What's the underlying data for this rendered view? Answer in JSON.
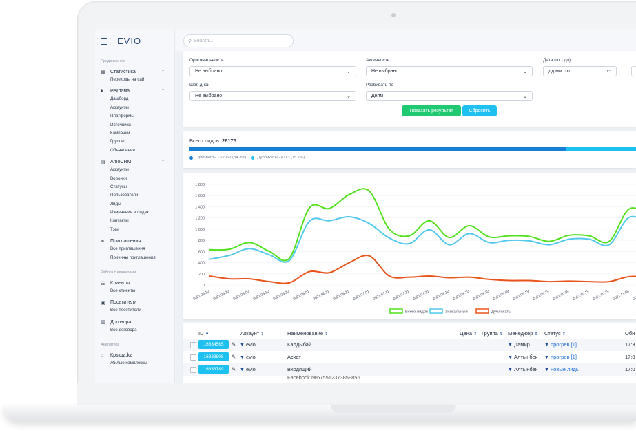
{
  "app": {
    "brand": "EVIO"
  },
  "search": {
    "placeholder": "Search..."
  },
  "sidebar": {
    "sections": [
      {
        "title": "Продвижение",
        "groups": [
          {
            "label": "Статистика",
            "icon": "building-icon",
            "items": [
              "Переходы на сайт"
            ]
          },
          {
            "label": "Реклама",
            "icon": "lightbulb-icon",
            "items": [
              "Дашборд",
              "Аккаунты",
              "Платформы",
              "Источники",
              "Кампании",
              "Группы",
              "Объявления"
            ]
          },
          {
            "label": "AmoCRM",
            "icon": "card-icon",
            "items": [
              "Аккаунты",
              "Воронки",
              "Статусы",
              "Пользователи",
              "Лиды",
              "Изменения в лидах",
              "Контакты",
              "Тэги"
            ]
          },
          {
            "label": "Приглашения",
            "icon": "handshake-icon",
            "items": [
              "Все приглашения",
              "Причины приглашения"
            ]
          }
        ]
      },
      {
        "title": "Работа с клиентами",
        "groups": [
          {
            "label": "Клиенты",
            "icon": "users-icon",
            "items": [
              "Все клиенты"
            ]
          },
          {
            "label": "Посетители",
            "icon": "file-icon",
            "items": [
              "Все посетители"
            ]
          },
          {
            "label": "Договора",
            "icon": "contract-icon",
            "items": [
              "Все договора"
            ]
          }
        ]
      },
      {
        "title": "Аналитика",
        "groups": [
          {
            "label": "Крыша.kz",
            "icon": "home-icon",
            "items": [
              "Жилые комплексы"
            ]
          }
        ]
      }
    ]
  },
  "filters": {
    "originality": {
      "label": "Оригинальность",
      "value": "Не выбрано"
    },
    "activity": {
      "label": "Активность",
      "value": "Не выбрано"
    },
    "date": {
      "label": "Дата (от - до)",
      "placeholder": "дд.мм.гггг"
    },
    "step": {
      "label": "Шаг, дней",
      "value": "Не выбрано"
    },
    "split": {
      "label": "Разбивать по",
      "value": "Дням"
    },
    "show_button": "Показать результат",
    "reset_button": "Сбросить"
  },
  "totals": {
    "label": "Всего лидов:",
    "value": "26175",
    "original_fraction": 0.843,
    "originals_text": "Оригиналы - 22062 (84.3%)",
    "duplicates_text": "Дубликаты - 4113 (15.7%)",
    "colors": {
      "originals": "#1680d6",
      "duplicates": "#1ec0f0"
    }
  },
  "chart_data": {
    "type": "line",
    "x": [
      "2021.04.12",
      "2021.04.22",
      "2021.05.02",
      "2021.05.12",
      "2021.05.22",
      "2021.06.01",
      "2021.06.11",
      "2021.06.21",
      "2021.07.01",
      "2021.07.11",
      "2021.07.21",
      "2021.07.31",
      "2021.08.10",
      "2021.08.20",
      "2021.08.30",
      "2021.09.09",
      "2021.09.19",
      "2021.09.29",
      "2021.10.09",
      "2021.10.19",
      "2021.10.29",
      "2021.11.08",
      "2021.11.18",
      "2021.11.28",
      "2021.12.08"
    ],
    "yticks": [
      "0",
      "200",
      "400",
      "600",
      "800",
      "1 000",
      "1 200",
      "1 400",
      "1 600",
      "1 800"
    ],
    "ylim": [
      0,
      1800
    ],
    "series": [
      {
        "name": "Всего лидов",
        "color": "#52e01f",
        "values": [
          630,
          640,
          760,
          600,
          480,
          1380,
          1370,
          1620,
          1680,
          1000,
          880,
          1150,
          850,
          1060,
          860,
          880,
          870,
          780,
          890,
          880,
          780,
          1360,
          1200,
          760,
          950
        ]
      },
      {
        "name": "Уникальные",
        "color": "#52c9ec",
        "values": [
          460,
          530,
          650,
          540,
          440,
          1140,
          1150,
          1220,
          1100,
          840,
          740,
          990,
          720,
          920,
          760,
          800,
          790,
          720,
          820,
          820,
          720,
          1210,
          1060,
          660,
          800
        ]
      },
      {
        "name": "Дубликаты",
        "color": "#e8541a",
        "values": [
          160,
          110,
          110,
          60,
          40,
          240,
          220,
          400,
          520,
          160,
          140,
          160,
          130,
          140,
          100,
          80,
          80,
          60,
          70,
          60,
          60,
          150,
          140,
          100,
          150
        ]
      }
    ]
  },
  "table": {
    "headers": {
      "id": "ID",
      "account": "Аккаунт",
      "name": "Наименование",
      "price": "Цена",
      "group": "Группа",
      "manager": "Менеджер",
      "status": "Статус",
      "updated": "Обн"
    },
    "rows": [
      {
        "id": "16834565",
        "account": "evio",
        "name": "Калдыбай",
        "manager": "Дамир",
        "status": "прогрев [1]",
        "updated": "17:3"
      },
      {
        "id": "16833808",
        "account": "evio",
        "name": "Асхат",
        "manager": "Алтынбек",
        "status": "прогрев [1]",
        "updated": "17:0"
      },
      {
        "id": "16833789",
        "account": "evio",
        "name": "Входящий",
        "manager": "Алтынбек",
        "status": "новые лиды",
        "updated": "17:0"
      },
      {
        "id": "",
        "account": "",
        "name": "Facebook №675512373859856",
        "manager": "",
        "status": "",
        "updated": ""
      }
    ]
  }
}
